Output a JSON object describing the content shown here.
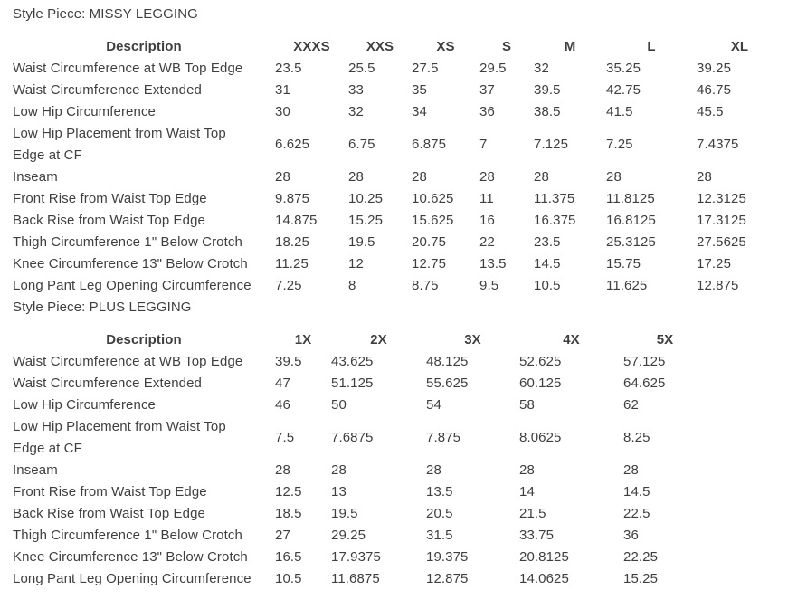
{
  "page": {
    "background": "#ffffff",
    "text_color": "#3f3f3f"
  },
  "chart_data": [
    {
      "type": "table",
      "title": "Style Piece: MISSY LEGGING",
      "columns": [
        "Description",
        "XXXS",
        "XXS",
        "XS",
        "S",
        "M",
        "L",
        "XL"
      ],
      "rows": [
        [
          "Waist Circumference at WB Top Edge",
          "23.5",
          "25.5",
          "27.5",
          "29.5",
          "32",
          "35.25",
          "39.25"
        ],
        [
          "Waist Circumference Extended",
          "31",
          "33",
          "35",
          "37",
          "39.5",
          "42.75",
          "46.75"
        ],
        [
          "Low Hip Circumference",
          "30",
          "32",
          "34",
          "36",
          "38.5",
          "41.5",
          "45.5"
        ],
        [
          "Low Hip Placement from Waist Top\nEdge at CF",
          "6.625",
          "6.75",
          "6.875",
          "7",
          "7.125",
          "7.25",
          "7.4375"
        ],
        [
          "Inseam",
          "28",
          "28",
          "28",
          "28",
          "28",
          "28",
          "28"
        ],
        [
          "Front Rise from Waist Top Edge",
          "9.875",
          "10.25",
          "10.625",
          "11",
          "11.375",
          "11.8125",
          "12.3125"
        ],
        [
          "Back Rise from Waist Top Edge",
          "14.875",
          "15.25",
          "15.625",
          "16",
          "16.375",
          "16.8125",
          "17.3125"
        ],
        [
          "Thigh Circumference 1\" Below Crotch",
          "18.25",
          "19.5",
          "20.75",
          "22",
          "23.5",
          "25.3125",
          "27.5625"
        ],
        [
          "Knee Circumference 13\" Below Crotch",
          "11.25",
          "12",
          "12.75",
          "13.5",
          "14.5",
          "15.75",
          "17.25"
        ],
        [
          "Long Pant Leg Opening Circumference",
          "7.25",
          "8",
          "8.75",
          "9.5",
          "10.5",
          "11.625",
          "12.875"
        ]
      ]
    },
    {
      "type": "table",
      "title": "Style Piece: PLUS LEGGING",
      "columns": [
        "Description",
        "1X",
        "2X",
        "3X",
        "4X",
        "5X"
      ],
      "rows": [
        [
          "Waist Circumference at WB Top Edge",
          "39.5",
          "43.625",
          "48.125",
          "52.625",
          "57.125"
        ],
        [
          "Waist Circumference Extended",
          "47",
          "51.125",
          "55.625",
          "60.125",
          "64.625"
        ],
        [
          "Low Hip Circumference",
          "46",
          "50",
          "54",
          "58",
          "62"
        ],
        [
          "Low Hip Placement from Waist Top\nEdge at CF",
          "7.5",
          "7.6875",
          "7.875",
          "8.0625",
          "8.25"
        ],
        [
          "Inseam",
          "28",
          "28",
          "28",
          "28",
          "28"
        ],
        [
          "Front Rise from Waist Top Edge",
          "12.5",
          "13",
          "13.5",
          "14",
          "14.5"
        ],
        [
          "Back Rise from Waist Top Edge",
          "18.5",
          "19.5",
          "20.5",
          "21.5",
          "22.5"
        ],
        [
          "Thigh Circumference 1\" Below Crotch",
          "27",
          "29.25",
          "31.5",
          "33.75",
          "36"
        ],
        [
          "Knee Circumference 13\" Below Crotch",
          "16.5",
          "17.9375",
          "19.375",
          "20.8125",
          "22.25"
        ],
        [
          "Long Pant Leg Opening Circumference",
          "10.5",
          "11.6875",
          "12.875",
          "14.0625",
          "15.25"
        ]
      ]
    }
  ]
}
